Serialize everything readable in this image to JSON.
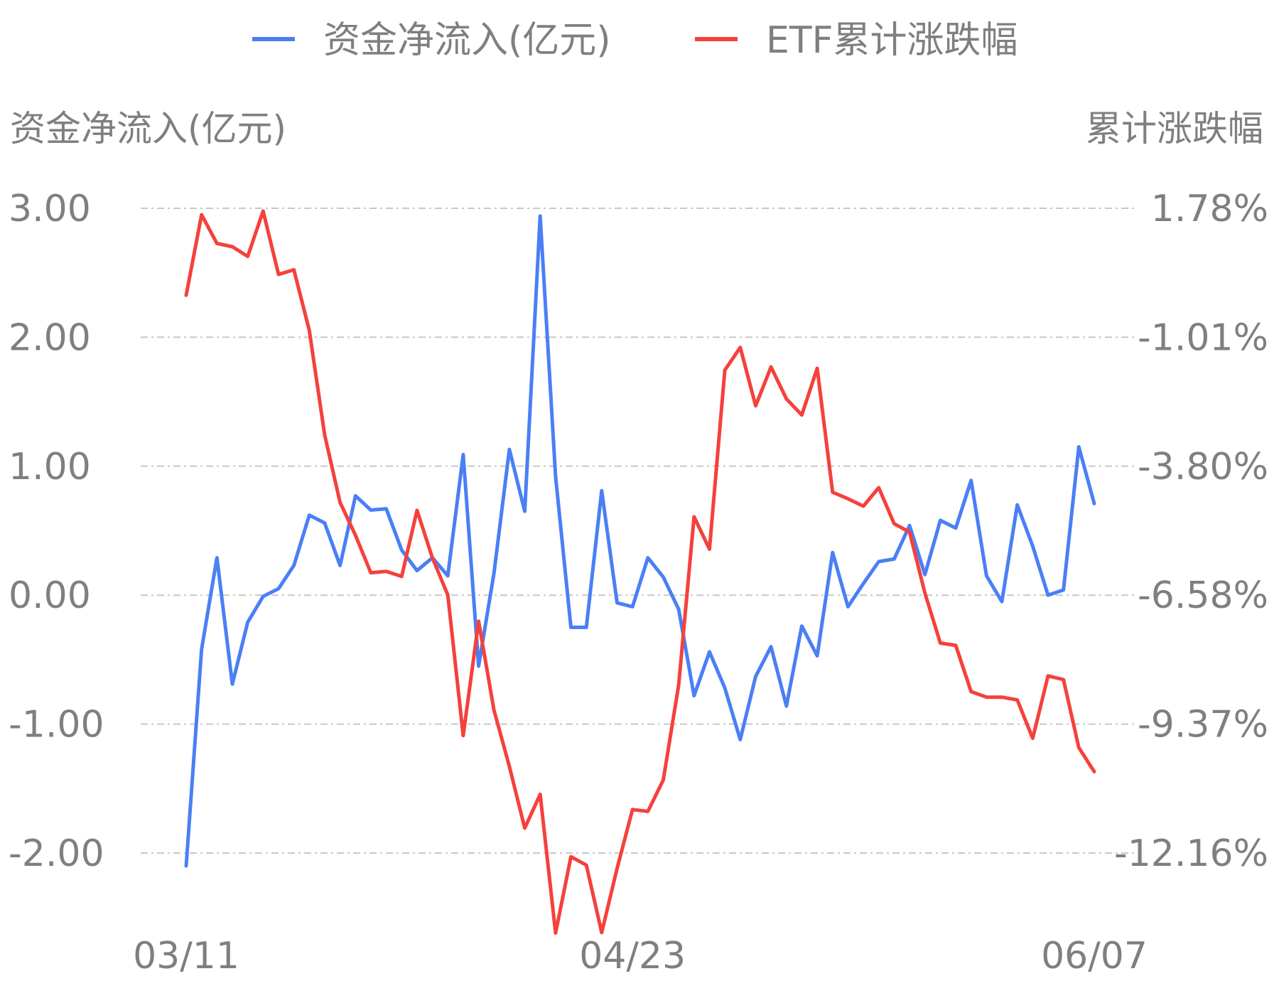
{
  "chart_data": {
    "type": "line",
    "title": "",
    "legend": [
      {
        "name": "资金净流入(亿元)",
        "color": "#4a7ff5"
      },
      {
        "name": "ETF累计涨跌幅",
        "color": "#f5413c"
      }
    ],
    "legend_position": "top",
    "y_left": {
      "label": "资金净流入(亿元)",
      "ticks": [
        "3.00",
        "2.00",
        "1.00",
        "0.00",
        "-1.00",
        "-2.00"
      ],
      "range": [
        -2.0,
        3.0
      ]
    },
    "y_right": {
      "label": "累计涨跌幅",
      "ticks": [
        "1.78%",
        "-1.01%",
        "-3.80%",
        "-6.58%",
        "-9.37%",
        "-12.16%"
      ],
      "range": [
        -12.16,
        1.78
      ]
    },
    "x_ticks": [
      "03/11",
      "04/23",
      "06/07"
    ],
    "x_tick_index": [
      0,
      29,
      59
    ],
    "grid": true,
    "series": [
      {
        "name": "资金净流入(亿元)",
        "axis": "left",
        "color": "#4a7ff5",
        "values": [
          -2.1,
          -0.42,
          0.29,
          -0.69,
          -0.21,
          -0.01,
          0.05,
          0.23,
          0.62,
          0.56,
          0.23,
          0.77,
          0.66,
          0.67,
          0.35,
          0.19,
          0.29,
          0.15,
          1.09,
          -0.55,
          0.17,
          1.13,
          0.65,
          2.94,
          0.92,
          -0.25,
          -0.25,
          0.81,
          -0.06,
          -0.09,
          0.29,
          0.14,
          -0.11,
          -0.78,
          -0.44,
          -0.72,
          -1.12,
          -0.63,
          -0.4,
          -0.86,
          -0.24,
          -0.47,
          0.33,
          -0.09,
          0.09,
          0.26,
          0.28,
          0.54,
          0.16,
          0.58,
          0.52,
          0.89,
          0.15,
          -0.05,
          0.7,
          0.38,
          0.0,
          0.04,
          1.15,
          0.71
        ]
      },
      {
        "name": "ETF累计涨跌幅",
        "axis": "right",
        "color": "#f5413c",
        "values": [
          -0.1,
          1.64,
          1.02,
          0.95,
          0.74,
          1.72,
          0.35,
          0.45,
          -0.86,
          -3.12,
          -4.58,
          -5.29,
          -6.1,
          -6.07,
          -6.18,
          -4.75,
          -5.78,
          -6.58,
          -9.62,
          -7.15,
          -9.07,
          -10.29,
          -11.62,
          -10.89,
          -13.89,
          -12.24,
          -12.42,
          -13.88,
          -12.49,
          -11.22,
          -11.26,
          -10.58,
          -8.52,
          -4.89,
          -5.59,
          -1.72,
          -1.23,
          -2.49,
          -1.65,
          -2.34,
          -2.69,
          -1.68,
          -4.36,
          -4.5,
          -4.66,
          -4.26,
          -5.04,
          -5.22,
          -6.54,
          -7.62,
          -7.67,
          -8.67,
          -8.79,
          -8.79,
          -8.85,
          -9.68,
          -8.33,
          -8.41,
          -9.88,
          -10.4
        ]
      }
    ]
  }
}
